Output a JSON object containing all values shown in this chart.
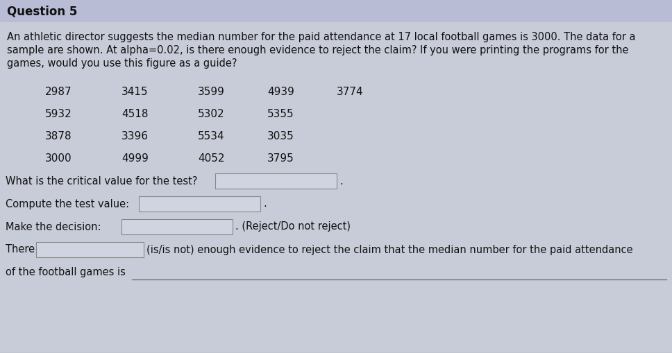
{
  "title": "Question 5",
  "title_bg": "#b8bcd4",
  "page_bg": "#c8ccd8",
  "title_text_color": "#111111",
  "body_text_color": "#111111",
  "paragraph_lines": [
    "An athletic director suggests the median number for the paid attendance at 17 local football games is 3000. The data for a",
    "sample are shown. At alpha=0.02, is there enough evidence to reject the claim? If you were printing the programs for the",
    "games, would you use this figure as a guide?"
  ],
  "data_rows": [
    [
      "2987",
      "3415",
      "3599",
      "4939",
      "3774"
    ],
    [
      "5932",
      "4518",
      "5302",
      "5355",
      ""
    ],
    [
      "3878",
      "3396",
      "5534",
      "3035",
      ""
    ],
    [
      "3000",
      "4999",
      "4052",
      "3795",
      ""
    ]
  ],
  "box_fill": "#d0d4e0",
  "box_edge": "#888888",
  "q1_label": "What is the critical value for the test?",
  "q2_label": "Compute the test value:",
  "q3_label": "Make the decision:",
  "q3_hint": "(Reject/Do not reject)",
  "q4_label": "There",
  "q4_hint": "(is/is not) enough evidence to reject the claim that the median number for the paid attendance",
  "q5_label": "of the football games is",
  "font_size_title": 12,
  "font_size_para": 10.5,
  "font_size_data": 11,
  "font_size_q": 10.5
}
